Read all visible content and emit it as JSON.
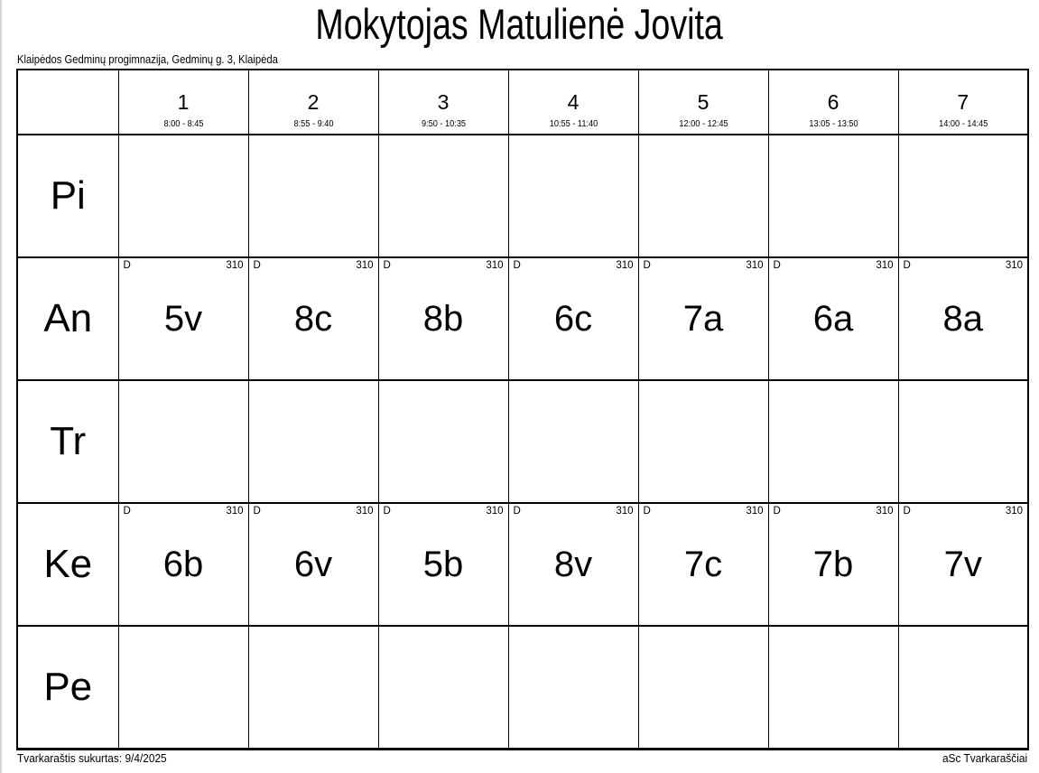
{
  "page": {
    "title": "Mokytojas Matulienė Jovita",
    "subtitle": "Klaipėdos Gedminų progimnazija, Gedminų g. 3, Klaipėda",
    "footer_left": "Tvarkaraštis sukurtas: 9/4/2025",
    "footer_right": "aSc Tvarkaraščiai"
  },
  "colors": {
    "ink": "#000000",
    "background": "#ffffff"
  },
  "periods": [
    {
      "num": "1",
      "time": "8:00 - 8:45"
    },
    {
      "num": "2",
      "time": "8:55 - 9:40"
    },
    {
      "num": "3",
      "time": "9:50 - 10:35"
    },
    {
      "num": "4",
      "time": "10:55 - 11:40"
    },
    {
      "num": "5",
      "time": "12:00 - 12:45"
    },
    {
      "num": "6",
      "time": "13:05 - 13:50"
    },
    {
      "num": "7",
      "time": "14:00 - 14:45"
    }
  ],
  "days": [
    {
      "label": "Pi",
      "lessons": [
        null,
        null,
        null,
        null,
        null,
        null,
        null
      ]
    },
    {
      "label": "An",
      "lessons": [
        {
          "group": "D",
          "room": "310",
          "class": "5v"
        },
        {
          "group": "D",
          "room": "310",
          "class": "8c"
        },
        {
          "group": "D",
          "room": "310",
          "class": "8b"
        },
        {
          "group": "D",
          "room": "310",
          "class": "6c"
        },
        {
          "group": "D",
          "room": "310",
          "class": "7a"
        },
        {
          "group": "D",
          "room": "310",
          "class": "6a"
        },
        {
          "group": "D",
          "room": "310",
          "class": "8a"
        }
      ]
    },
    {
      "label": "Tr",
      "lessons": [
        null,
        null,
        null,
        null,
        null,
        null,
        null
      ]
    },
    {
      "label": "Ke",
      "lessons": [
        {
          "group": "D",
          "room": "310",
          "class": "6b"
        },
        {
          "group": "D",
          "room": "310",
          "class": "6v"
        },
        {
          "group": "D",
          "room": "310",
          "class": "5b"
        },
        {
          "group": "D",
          "room": "310",
          "class": "8v"
        },
        {
          "group": "D",
          "room": "310",
          "class": "7c"
        },
        {
          "group": "D",
          "room": "310",
          "class": "7b"
        },
        {
          "group": "D",
          "room": "310",
          "class": "7v"
        }
      ]
    },
    {
      "label": "Pe",
      "lessons": [
        null,
        null,
        null,
        null,
        null,
        null,
        null
      ]
    }
  ]
}
